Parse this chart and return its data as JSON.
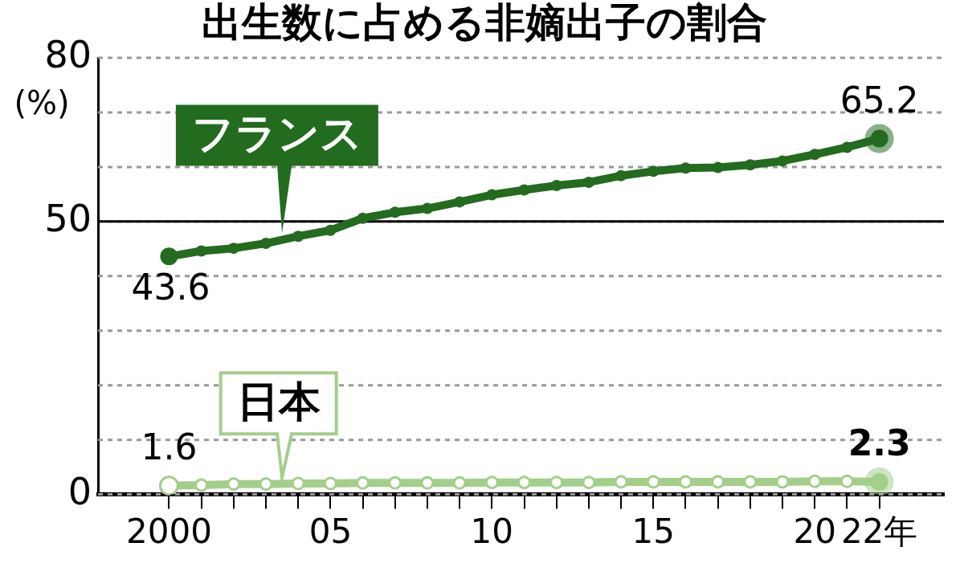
{
  "chart_data": {
    "type": "line",
    "title": "出生数に占める非嫡出子の割合",
    "ylabel": "(%)",
    "categories": [
      "2000",
      null,
      null,
      null,
      null,
      "05",
      null,
      null,
      null,
      null,
      "10",
      null,
      null,
      null,
      null,
      "15",
      null,
      null,
      null,
      null,
      "20",
      null,
      "22年"
    ],
    "series": [
      {
        "name": "フランス",
        "color": "#236b1e",
        "values": [
          43.6,
          44.6,
          45.1,
          46.0,
          47.3,
          48.4,
          50.6,
          51.7,
          52.4,
          53.6,
          54.9,
          55.8,
          56.6,
          57.2,
          58.4,
          59.2,
          59.8,
          59.9,
          60.4,
          61.1,
          62.3,
          63.6,
          65.2
        ],
        "value_labels": [
          "43.6",
          null,
          null,
          null,
          null,
          null,
          null,
          null,
          null,
          null,
          null,
          null,
          null,
          null,
          null,
          null,
          null,
          null,
          null,
          null,
          null,
          null,
          "65.2"
        ]
      },
      {
        "name": "日本",
        "color": "#a3cf8a",
        "values": [
          1.6,
          1.7,
          1.9,
          1.9,
          2.0,
          2.0,
          2.1,
          2.1,
          2.1,
          2.1,
          2.2,
          2.2,
          2.2,
          2.2,
          2.3,
          2.3,
          2.3,
          2.3,
          2.3,
          2.3,
          2.4,
          2.4,
          2.3
        ],
        "value_labels": [
          "1.6",
          null,
          null,
          null,
          null,
          null,
          null,
          null,
          null,
          null,
          null,
          null,
          null,
          null,
          null,
          null,
          null,
          null,
          null,
          null,
          null,
          null,
          "2.3"
        ]
      }
    ],
    "ylim": [
      0,
      80
    ],
    "ref_lines": [
      {
        "axis": "y",
        "value": 50,
        "color": "#000000"
      }
    ],
    "yticks": [
      0,
      {
        "value": 10,
        "label": null
      },
      {
        "value": 20,
        "label": null
      },
      {
        "value": 30,
        "label": null
      },
      {
        "value": 40,
        "label": null
      },
      50,
      {
        "value": 60,
        "label": null
      },
      {
        "value": 70,
        "label": null
      },
      80
    ],
    "grid": "y",
    "legend": false,
    "marker": "circle",
    "line_style": "solid"
  }
}
